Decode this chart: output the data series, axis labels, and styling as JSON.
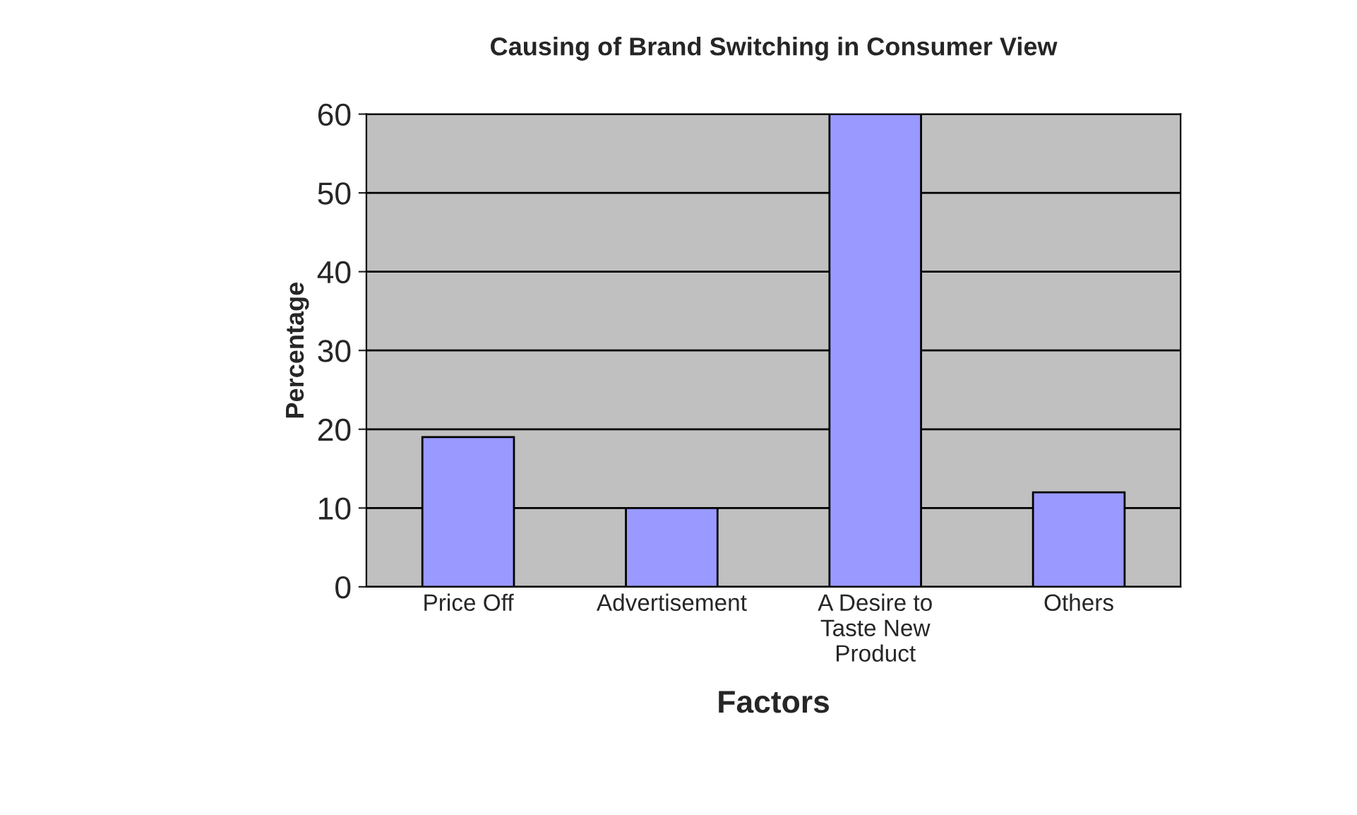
{
  "chart_data": {
    "type": "bar",
    "title": "Causing of Brand Switching in Consumer View",
    "xlabel": "Factors",
    "ylabel": "Percentage",
    "categories": [
      "Price Off",
      "Advertisement",
      "A Desire to\nTaste New\nProduct",
      "Others"
    ],
    "values": [
      19,
      10,
      60,
      12
    ],
    "color": "#9999ff",
    "ylim": [
      0,
      60
    ],
    "yticks": [
      0,
      10,
      20,
      30,
      40,
      50,
      60
    ],
    "grid": "y",
    "legend": false
  }
}
